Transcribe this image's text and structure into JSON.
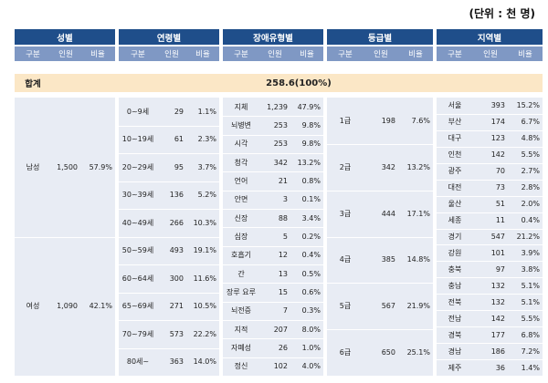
{
  "unit_label": "(단위 : 천 명)",
  "groups": [
    {
      "title": "성별",
      "cols": [
        "구분",
        "인원",
        "비율"
      ]
    },
    {
      "title": "연령별",
      "cols": [
        "구분",
        "인원",
        "비율"
      ]
    },
    {
      "title": "장애유형별",
      "cols": [
        "구분",
        "인원",
        "비율"
      ]
    },
    {
      "title": "등급별",
      "cols": [
        "구분",
        "인원",
        "비율"
      ]
    },
    {
      "title": "지역별",
      "cols": [
        "구분",
        "인원",
        "비율"
      ]
    }
  ],
  "total": {
    "label": "합계",
    "value": "258.6(100%)"
  },
  "gender": [
    {
      "label": "남성",
      "count": "1,500",
      "ratio": "57.9%"
    },
    {
      "label": "여성",
      "count": "1,090",
      "ratio": "42.1%"
    }
  ],
  "age": [
    {
      "label": "0~9세",
      "count": "29",
      "ratio": "1.1%"
    },
    {
      "label": "10~19세",
      "count": "61",
      "ratio": "2.3%"
    },
    {
      "label": "20~29세",
      "count": "95",
      "ratio": "3.7%"
    },
    {
      "label": "30~39세",
      "count": "136",
      "ratio": "5.2%"
    },
    {
      "label": "40~49세",
      "count": "266",
      "ratio": "10.3%"
    },
    {
      "label": "50~59세",
      "count": "493",
      "ratio": "19.1%"
    },
    {
      "label": "60~64세",
      "count": "300",
      "ratio": "11.6%"
    },
    {
      "label": "65~69세",
      "count": "271",
      "ratio": "10.5%"
    },
    {
      "label": "70~79세",
      "count": "573",
      "ratio": "22.2%"
    },
    {
      "label": "80세~",
      "count": "363",
      "ratio": "14.0%"
    }
  ],
  "disability": [
    {
      "label": "지체",
      "count": "1,239",
      "ratio": "47.9%"
    },
    {
      "label": "뇌병변",
      "count": "253",
      "ratio": "9.8%"
    },
    {
      "label": "시각",
      "count": "253",
      "ratio": "9.8%"
    },
    {
      "label": "청각",
      "count": "342",
      "ratio": "13.2%"
    },
    {
      "label": "언어",
      "count": "21",
      "ratio": "0.8%"
    },
    {
      "label": "안면",
      "count": "3",
      "ratio": "0.1%"
    },
    {
      "label": "신장",
      "count": "88",
      "ratio": "3.4%"
    },
    {
      "label": "심장",
      "count": "5",
      "ratio": "0.2%"
    },
    {
      "label": "호흡기",
      "count": "12",
      "ratio": "0.4%"
    },
    {
      "label": "간",
      "count": "13",
      "ratio": "0.5%"
    },
    {
      "label": "장루 요루",
      "count": "15",
      "ratio": "0.6%"
    },
    {
      "label": "뇌전증",
      "count": "7",
      "ratio": "0.3%"
    },
    {
      "label": "지적",
      "count": "207",
      "ratio": "8.0%"
    },
    {
      "label": "자폐성",
      "count": "26",
      "ratio": "1.0%"
    },
    {
      "label": "정신",
      "count": "102",
      "ratio": "4.0%"
    }
  ],
  "grade": [
    {
      "label": "1급",
      "count": "198",
      "ratio": "7.6%"
    },
    {
      "label": "2급",
      "count": "342",
      "ratio": "13.2%"
    },
    {
      "label": "3급",
      "count": "444",
      "ratio": "17.1%"
    },
    {
      "label": "4급",
      "count": "385",
      "ratio": "14.8%"
    },
    {
      "label": "5급",
      "count": "567",
      "ratio": "21.9%"
    },
    {
      "label": "6급",
      "count": "650",
      "ratio": "25.1%"
    }
  ],
  "region": [
    {
      "label": "서울",
      "count": "393",
      "ratio": "15.2%"
    },
    {
      "label": "부산",
      "count": "174",
      "ratio": "6.7%"
    },
    {
      "label": "대구",
      "count": "123",
      "ratio": "4.8%"
    },
    {
      "label": "인천",
      "count": "142",
      "ratio": "5.5%"
    },
    {
      "label": "광주",
      "count": "70",
      "ratio": "2.7%"
    },
    {
      "label": "대전",
      "count": "73",
      "ratio": "2.8%"
    },
    {
      "label": "울산",
      "count": "51",
      "ratio": "2.0%"
    },
    {
      "label": "세종",
      "count": "11",
      "ratio": "0.4%"
    },
    {
      "label": "경기",
      "count": "547",
      "ratio": "21.2%"
    },
    {
      "label": "강원",
      "count": "101",
      "ratio": "3.9%"
    },
    {
      "label": "충북",
      "count": "97",
      "ratio": "3.8%"
    },
    {
      "label": "충남",
      "count": "132",
      "ratio": "5.1%"
    },
    {
      "label": "전북",
      "count": "132",
      "ratio": "5.1%"
    },
    {
      "label": "전남",
      "count": "142",
      "ratio": "5.5%"
    },
    {
      "label": "경북",
      "count": "177",
      "ratio": "6.8%"
    },
    {
      "label": "경남",
      "count": "186",
      "ratio": "7.2%"
    },
    {
      "label": "제주",
      "count": "36",
      "ratio": "1.4%"
    }
  ]
}
